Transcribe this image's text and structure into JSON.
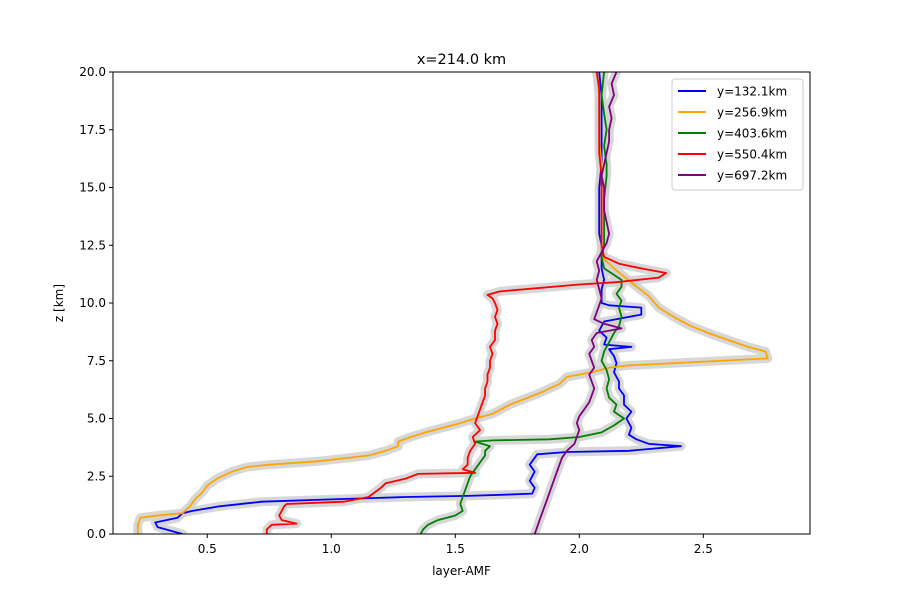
{
  "chart_data": {
    "type": "line",
    "title": "x=214.0 km",
    "xlabel": "layer-AMF",
    "ylabel": "z [km]",
    "xlim": [
      0.12,
      2.93
    ],
    "ylim": [
      0,
      20
    ],
    "xticks": [
      "0.5",
      "1.0",
      "1.5",
      "2.0",
      "2.5"
    ],
    "xtick_values": [
      0.5,
      1.0,
      1.5,
      2.0,
      2.5
    ],
    "yticks": [
      "0.0",
      "2.5",
      "5.0",
      "7.5",
      "10.0",
      "12.5",
      "15.0",
      "17.5",
      "20.0"
    ],
    "ytick_values": [
      0,
      2.5,
      5,
      7.5,
      10,
      12.5,
      15,
      17.5,
      20
    ],
    "grid": false,
    "legend_position": "top-right",
    "uncertainty_band_color": "#d3d3d3",
    "series": [
      {
        "name": "y=132.1km",
        "color": "#0000ff",
        "points": [
          [
            0.4,
            0
          ],
          [
            0.3,
            0.3
          ],
          [
            0.29,
            0.5
          ],
          [
            0.38,
            0.7
          ],
          [
            0.4,
            0.9
          ],
          [
            0.44,
            1.0
          ],
          [
            0.55,
            1.2
          ],
          [
            0.72,
            1.4
          ],
          [
            1.0,
            1.5
          ],
          [
            1.3,
            1.6
          ],
          [
            1.55,
            1.65
          ],
          [
            1.7,
            1.7
          ],
          [
            1.81,
            1.75
          ],
          [
            1.82,
            2.0
          ],
          [
            1.8,
            2.3
          ],
          [
            1.82,
            2.7
          ],
          [
            1.8,
            3.0
          ],
          [
            1.82,
            3.3
          ],
          [
            1.83,
            3.45
          ],
          [
            1.95,
            3.55
          ],
          [
            2.2,
            3.6
          ],
          [
            2.41,
            3.8
          ],
          [
            2.28,
            3.9
          ],
          [
            2.23,
            4.1
          ],
          [
            2.2,
            4.3
          ],
          [
            2.21,
            4.6
          ],
          [
            2.19,
            5.0
          ],
          [
            2.21,
            5.3
          ],
          [
            2.18,
            5.6
          ],
          [
            2.18,
            6.0
          ],
          [
            2.16,
            6.3
          ],
          [
            2.16,
            6.6
          ],
          [
            2.14,
            7.0
          ],
          [
            2.15,
            7.4
          ],
          [
            2.14,
            7.7
          ],
          [
            2.12,
            8.0
          ],
          [
            2.21,
            8.1
          ],
          [
            2.1,
            8.2
          ],
          [
            2.11,
            8.5
          ],
          [
            2.08,
            8.8
          ],
          [
            2.1,
            9.2
          ],
          [
            2.25,
            9.5
          ],
          [
            2.25,
            9.8
          ],
          [
            2.12,
            9.9
          ],
          [
            2.09,
            10.0
          ],
          [
            2.09,
            10.3
          ],
          [
            2.09,
            10.6
          ],
          [
            2.1,
            11.0
          ],
          [
            2.09,
            11.5
          ],
          [
            2.09,
            12.0
          ],
          [
            2.09,
            12.5
          ],
          [
            2.08,
            13.0
          ],
          [
            2.08,
            13.5
          ],
          [
            2.08,
            14.0
          ],
          [
            2.08,
            15.0
          ],
          [
            2.09,
            16.0
          ],
          [
            2.09,
            17.0
          ],
          [
            2.09,
            18.0
          ],
          [
            2.09,
            19.0
          ],
          [
            2.08,
            20.0
          ]
        ]
      },
      {
        "name": "y=256.9km",
        "color": "#ffa500",
        "points": [
          [
            0.22,
            0
          ],
          [
            0.22,
            0.4
          ],
          [
            0.23,
            0.7
          ],
          [
            0.3,
            0.8
          ],
          [
            0.4,
            0.9
          ],
          [
            0.43,
            1.2
          ],
          [
            0.45,
            1.5
          ],
          [
            0.48,
            1.8
          ],
          [
            0.5,
            2.1
          ],
          [
            0.54,
            2.4
          ],
          [
            0.6,
            2.7
          ],
          [
            0.66,
            2.9
          ],
          [
            0.75,
            3.0
          ],
          [
            0.95,
            3.15
          ],
          [
            1.15,
            3.4
          ],
          [
            1.22,
            3.6
          ],
          [
            1.27,
            3.8
          ],
          [
            1.27,
            4.0
          ],
          [
            1.32,
            4.2
          ],
          [
            1.38,
            4.4
          ],
          [
            1.45,
            4.6
          ],
          [
            1.52,
            4.8
          ],
          [
            1.58,
            5.0
          ],
          [
            1.65,
            5.2
          ],
          [
            1.72,
            5.6
          ],
          [
            1.84,
            6.1
          ],
          [
            1.92,
            6.5
          ],
          [
            1.95,
            6.8
          ],
          [
            2.05,
            7.0
          ],
          [
            2.12,
            7.2
          ],
          [
            2.2,
            7.3
          ],
          [
            2.76,
            7.6
          ],
          [
            2.75,
            7.9
          ],
          [
            2.68,
            8.1
          ],
          [
            2.6,
            8.4
          ],
          [
            2.52,
            8.7
          ],
          [
            2.45,
            9.0
          ],
          [
            2.38,
            9.4
          ],
          [
            2.32,
            9.8
          ],
          [
            2.28,
            10.3
          ],
          [
            2.22,
            10.8
          ],
          [
            2.14,
            11.5
          ],
          [
            2.1,
            11.9
          ],
          [
            2.09,
            12.2
          ],
          [
            2.09,
            13.0
          ],
          [
            2.09,
            14.0
          ],
          [
            2.09,
            15.0
          ],
          [
            2.09,
            16.0
          ],
          [
            2.08,
            17.0
          ],
          [
            2.08,
            18.0
          ],
          [
            2.08,
            19.0
          ],
          [
            2.07,
            20.0
          ]
        ]
      },
      {
        "name": "y=403.6km",
        "color": "#008000",
        "points": [
          [
            1.36,
            0
          ],
          [
            1.37,
            0.2
          ],
          [
            1.39,
            0.4
          ],
          [
            1.43,
            0.6
          ],
          [
            1.5,
            0.8
          ],
          [
            1.53,
            1.0
          ],
          [
            1.52,
            1.3
          ],
          [
            1.53,
            1.6
          ],
          [
            1.54,
            1.9
          ],
          [
            1.55,
            2.2
          ],
          [
            1.56,
            2.5
          ],
          [
            1.58,
            2.8
          ],
          [
            1.6,
            3.1
          ],
          [
            1.62,
            3.4
          ],
          [
            1.62,
            3.6
          ],
          [
            1.64,
            3.8
          ],
          [
            1.58,
            4.0
          ],
          [
            1.65,
            4.05
          ],
          [
            1.88,
            4.1
          ],
          [
            2.0,
            4.2
          ],
          [
            2.09,
            4.4
          ],
          [
            2.14,
            4.7
          ],
          [
            2.18,
            5.0
          ],
          [
            2.14,
            5.3
          ],
          [
            2.15,
            5.6
          ],
          [
            2.12,
            5.9
          ],
          [
            2.11,
            6.3
          ],
          [
            2.12,
            6.7
          ],
          [
            2.11,
            7.1
          ],
          [
            2.09,
            7.5
          ],
          [
            2.1,
            7.9
          ],
          [
            2.12,
            8.3
          ],
          [
            2.14,
            8.7
          ],
          [
            2.16,
            9.0
          ],
          [
            2.17,
            9.4
          ],
          [
            2.16,
            9.8
          ],
          [
            2.17,
            10.1
          ],
          [
            2.15,
            10.4
          ],
          [
            2.17,
            10.7
          ],
          [
            2.17,
            11.0
          ],
          [
            2.1,
            11.5
          ],
          [
            2.09,
            12.0
          ],
          [
            2.1,
            12.5
          ],
          [
            2.1,
            13.5
          ],
          [
            2.1,
            14.5
          ],
          [
            2.11,
            15.5
          ],
          [
            2.11,
            16.0
          ],
          [
            2.1,
            16.8
          ],
          [
            2.11,
            17.5
          ],
          [
            2.1,
            18.2
          ],
          [
            2.09,
            19.0
          ],
          [
            2.1,
            20.0
          ]
        ]
      },
      {
        "name": "y=550.4km",
        "color": "#ff0000",
        "points": [
          [
            0.74,
            0
          ],
          [
            0.74,
            0.2
          ],
          [
            0.76,
            0.4
          ],
          [
            0.86,
            0.45
          ],
          [
            0.8,
            0.6
          ],
          [
            0.79,
            0.8
          ],
          [
            0.8,
            1.0
          ],
          [
            0.81,
            1.2
          ],
          [
            0.82,
            1.3
          ],
          [
            1.05,
            1.4
          ],
          [
            1.15,
            1.6
          ],
          [
            1.2,
            2.0
          ],
          [
            1.22,
            2.2
          ],
          [
            1.3,
            2.4
          ],
          [
            1.35,
            2.6
          ],
          [
            1.58,
            2.65
          ],
          [
            1.53,
            2.8
          ],
          [
            1.55,
            3.0
          ],
          [
            1.55,
            3.3
          ],
          [
            1.56,
            3.6
          ],
          [
            1.58,
            3.9
          ],
          [
            1.57,
            4.2
          ],
          [
            1.6,
            4.5
          ],
          [
            1.58,
            4.8
          ],
          [
            1.59,
            5.1
          ],
          [
            1.6,
            5.4
          ],
          [
            1.61,
            5.7
          ],
          [
            1.62,
            6.0
          ],
          [
            1.62,
            6.3
          ],
          [
            1.63,
            6.6
          ],
          [
            1.63,
            6.9
          ],
          [
            1.64,
            7.2
          ],
          [
            1.64,
            7.5
          ],
          [
            1.65,
            7.8
          ],
          [
            1.64,
            8.1
          ],
          [
            1.66,
            8.4
          ],
          [
            1.66,
            8.8
          ],
          [
            1.67,
            9.1
          ],
          [
            1.66,
            9.4
          ],
          [
            1.67,
            9.7
          ],
          [
            1.66,
            10.0
          ],
          [
            1.65,
            10.2
          ],
          [
            1.63,
            10.35
          ],
          [
            1.68,
            10.5
          ],
          [
            2.0,
            10.8
          ],
          [
            2.15,
            10.9
          ],
          [
            2.32,
            11.1
          ],
          [
            2.35,
            11.3
          ],
          [
            2.25,
            11.5
          ],
          [
            2.16,
            11.7
          ],
          [
            2.1,
            12.0
          ],
          [
            2.09,
            12.5
          ],
          [
            2.09,
            13.5
          ],
          [
            2.09,
            14.5
          ],
          [
            2.09,
            15.5
          ],
          [
            2.08,
            16.5
          ],
          [
            2.08,
            17.5
          ],
          [
            2.08,
            18.5
          ],
          [
            2.08,
            19.3
          ],
          [
            2.07,
            20.0
          ]
        ]
      },
      {
        "name": "y=697.2km",
        "color": "#800080",
        "points": [
          [
            1.82,
            0
          ],
          [
            1.83,
            0.3
          ],
          [
            1.84,
            0.6
          ],
          [
            1.85,
            0.9
          ],
          [
            1.86,
            1.2
          ],
          [
            1.87,
            1.5
          ],
          [
            1.88,
            1.8
          ],
          [
            1.89,
            2.1
          ],
          [
            1.9,
            2.4
          ],
          [
            1.91,
            2.7
          ],
          [
            1.92,
            3.0
          ],
          [
            1.93,
            3.3
          ],
          [
            1.95,
            3.6
          ],
          [
            1.98,
            3.9
          ],
          [
            1.99,
            4.2
          ],
          [
            2.0,
            4.5
          ],
          [
            1.99,
            4.8
          ],
          [
            2.0,
            5.1
          ],
          [
            2.02,
            5.4
          ],
          [
            2.04,
            5.7
          ],
          [
            2.05,
            6.0
          ],
          [
            2.06,
            6.3
          ],
          [
            2.05,
            6.6
          ],
          [
            2.04,
            6.9
          ],
          [
            2.06,
            7.2
          ],
          [
            2.05,
            7.5
          ],
          [
            2.04,
            7.8
          ],
          [
            2.06,
            8.1
          ],
          [
            2.05,
            8.4
          ],
          [
            2.07,
            8.7
          ],
          [
            2.17,
            8.9
          ],
          [
            2.1,
            9.1
          ],
          [
            2.06,
            9.3
          ],
          [
            2.07,
            9.6
          ],
          [
            2.08,
            9.9
          ],
          [
            2.09,
            10.2
          ],
          [
            2.08,
            10.6
          ],
          [
            2.07,
            11.0
          ],
          [
            2.08,
            11.4
          ],
          [
            2.07,
            11.8
          ],
          [
            2.09,
            12.2
          ],
          [
            2.11,
            12.6
          ],
          [
            2.12,
            13.0
          ],
          [
            2.11,
            13.5
          ],
          [
            2.1,
            14.0
          ],
          [
            2.1,
            14.5
          ],
          [
            2.1,
            15.0
          ],
          [
            2.09,
            15.5
          ],
          [
            2.1,
            16.0
          ],
          [
            2.11,
            16.5
          ],
          [
            2.12,
            17.0
          ],
          [
            2.12,
            17.5
          ],
          [
            2.13,
            18.0
          ],
          [
            2.12,
            18.5
          ],
          [
            2.14,
            19.0
          ],
          [
            2.13,
            19.5
          ],
          [
            2.15,
            20.0
          ]
        ]
      }
    ]
  }
}
